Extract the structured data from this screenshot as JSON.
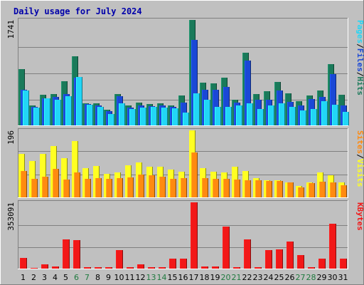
{
  "chart_data": [
    {
      "type": "bar",
      "title": "Daily usage for July 2024",
      "panel": "hits-files-pages",
      "categories": [
        "1",
        "2",
        "3",
        "4",
        "5",
        "6",
        "7",
        "8",
        "9",
        "10",
        "11",
        "12",
        "13",
        "14",
        "15",
        "16",
        "17",
        "18",
        "19",
        "20",
        "21",
        "22",
        "23",
        "24",
        "25",
        "26",
        "27",
        "28",
        "29",
        "30",
        "31"
      ],
      "ylabel_max": "1741",
      "ylim": [
        0,
        1741
      ],
      "legend": [
        "Pages",
        "/",
        "Files",
        "/",
        "Hits"
      ],
      "series": [
        {
          "name": "Hits",
          "color": "#1a7a5a",
          "values": [
            925,
            330,
            510,
            520,
            735,
            1145,
            370,
            360,
            260,
            520,
            330,
            375,
            355,
            365,
            335,
            490,
            1741,
            710,
            690,
            785,
            425,
            1195,
            515,
            565,
            720,
            525,
            395,
            490,
            580,
            1015,
            500
          ]
        },
        {
          "name": "Files",
          "color": "#1a48d6",
          "values": [
            590,
            310,
            450,
            470,
            520,
            790,
            350,
            330,
            230,
            480,
            290,
            330,
            320,
            330,
            300,
            380,
            1415,
            590,
            590,
            630,
            380,
            1065,
            420,
            420,
            580,
            390,
            330,
            430,
            470,
            850,
            330
          ]
        },
        {
          "name": "Pages",
          "color": "#22d6f6",
          "values": [
            575,
            290,
            450,
            420,
            485,
            805,
            340,
            310,
            190,
            360,
            265,
            290,
            300,
            290,
            285,
            215,
            535,
            425,
            300,
            310,
            325,
            360,
            270,
            330,
            365,
            300,
            250,
            275,
            395,
            345,
            225
          ]
        }
      ],
      "colors": {
        "Hits": "#1a7a5a",
        "Files": "#1a48d6",
        "Pages": "#22d6f6"
      },
      "grid": true
    },
    {
      "type": "bar",
      "panel": "visits-sites",
      "categories": [
        "1",
        "2",
        "3",
        "4",
        "5",
        "6",
        "7",
        "8",
        "9",
        "10",
        "11",
        "12",
        "13",
        "14",
        "15",
        "16",
        "17",
        "18",
        "19",
        "20",
        "21",
        "22",
        "23",
        "24",
        "25",
        "26",
        "27",
        "28",
        "29",
        "30",
        "31"
      ],
      "ylabel_max": "196",
      "ylim": [
        0,
        196
      ],
      "legend": [
        "Sites",
        "/",
        "Visits"
      ],
      "series": [
        {
          "name": "Visits",
          "color": "#ffff22",
          "values": [
            128,
            106,
            128,
            150,
            114,
            164,
            86,
            92,
            68,
            72,
            94,
            102,
            90,
            90,
            82,
            75,
            196,
            86,
            76,
            72,
            90,
            78,
            56,
            50,
            50,
            44,
            34,
            44,
            72,
            64,
            44
          ]
        },
        {
          "name": "Sites",
          "color": "#ff8a10",
          "values": [
            78,
            55,
            60,
            84,
            52,
            74,
            54,
            56,
            54,
            56,
            58,
            66,
            64,
            60,
            54,
            56,
            132,
            56,
            54,
            54,
            52,
            50,
            50,
            48,
            48,
            44,
            30,
            42,
            46,
            44,
            36
          ]
        }
      ],
      "colors": {
        "Visits": "#ffff22",
        "Sites": "#ff8a10"
      },
      "grid": true
    },
    {
      "type": "bar",
      "panel": "kbytes",
      "categories": [
        "1",
        "2",
        "3",
        "4",
        "5",
        "6",
        "7",
        "8",
        "9",
        "10",
        "11",
        "12",
        "13",
        "14",
        "15",
        "16",
        "17",
        "18",
        "19",
        "20",
        "21",
        "22",
        "23",
        "24",
        "25",
        "26",
        "27",
        "28",
        "29",
        "30",
        "31"
      ],
      "ylabel_max": "353091",
      "ylim": [
        0,
        353091
      ],
      "legend": [
        "KBytes"
      ],
      "series": [
        {
          "name": "KBytes",
          "color": "#f21818",
          "values": [
            58000,
            4500,
            22000,
            10000,
            155000,
            150000,
            6000,
            6000,
            6000,
            100000,
            6000,
            24000,
            6000,
            6000,
            55000,
            55000,
            353091,
            10000,
            10000,
            225000,
            6000,
            155000,
            6000,
            100000,
            104000,
            145000,
            72000,
            6000,
            55000,
            240000,
            55000
          ]
        }
      ],
      "colors": {
        "KBytes": "#f21818"
      },
      "grid": true
    }
  ],
  "weekend_days": [
    "6",
    "7",
    "13",
    "14",
    "20",
    "21",
    "27",
    "28"
  ],
  "colors": {
    "background": "#c0c0c0",
    "title": "#0000aa",
    "axis_label": "#000000",
    "weekend_label": "#1f7a3f"
  }
}
